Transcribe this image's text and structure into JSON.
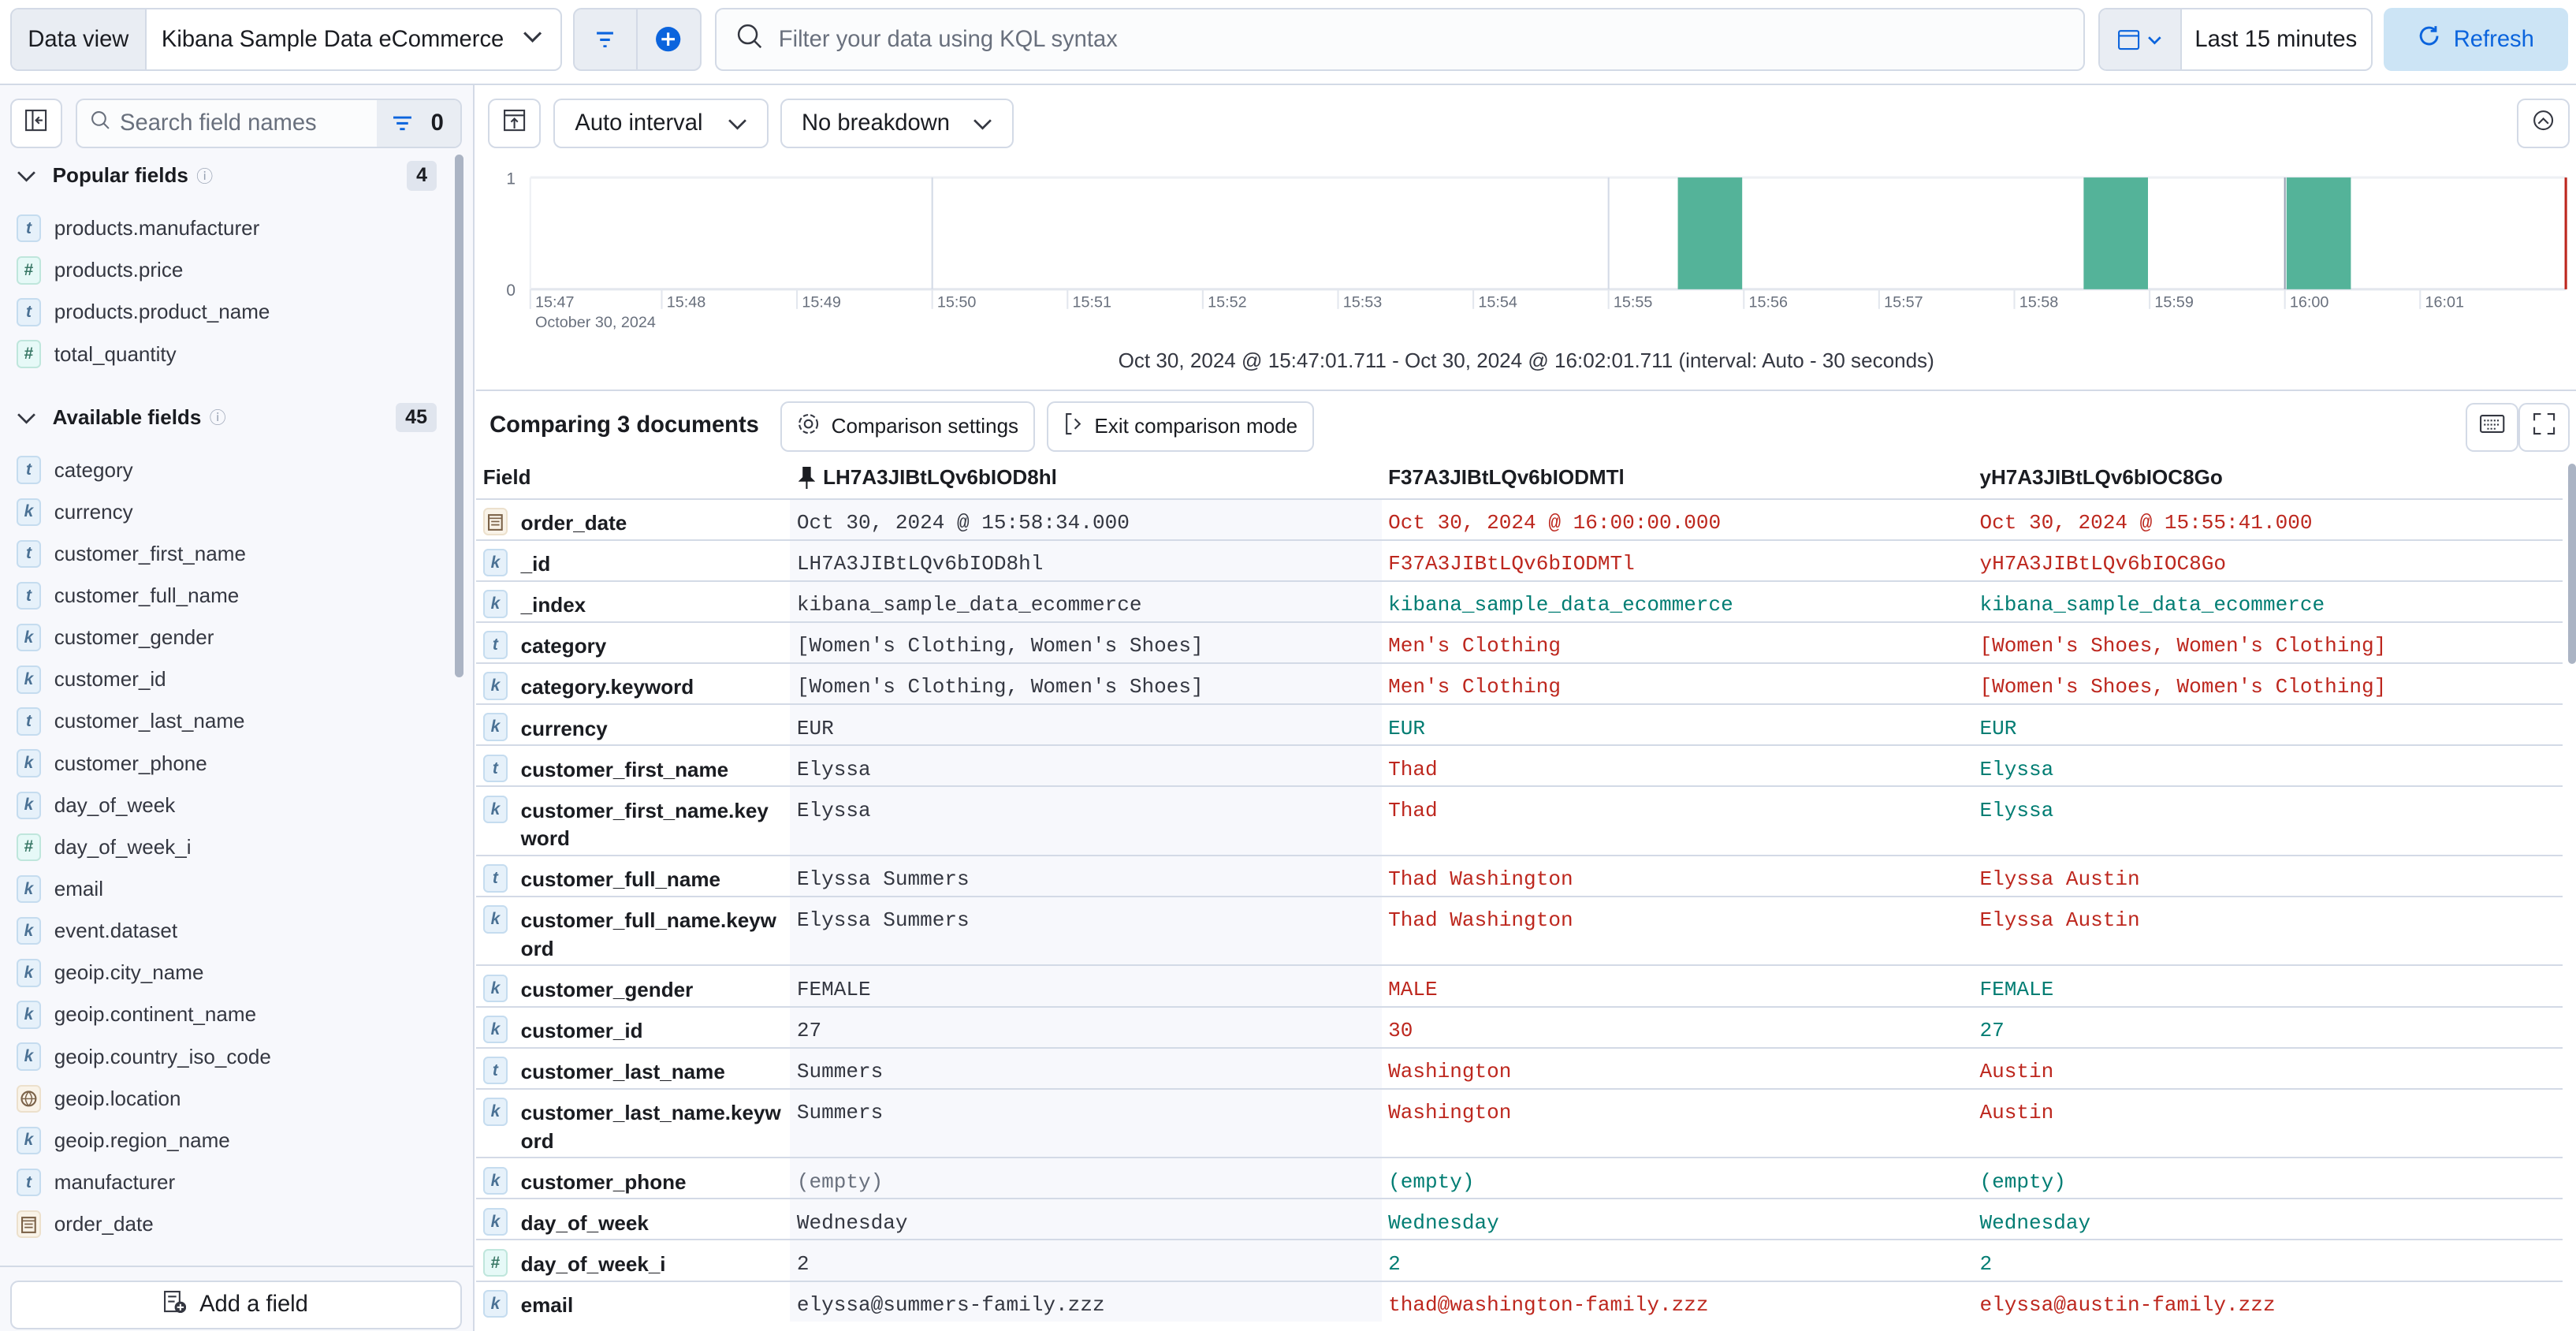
{
  "topbar": {
    "data_view_label": "Data view",
    "data_view_value": "Kibana Sample Data eCommerce",
    "query_placeholder": "Filter your data using KQL syntax",
    "time_range": "Last 15 minutes",
    "refresh_label": "Refresh"
  },
  "sidebar": {
    "search_placeholder": "Search field names",
    "filter_count": "0",
    "popular": {
      "title": "Popular fields",
      "count": "4",
      "items": [
        {
          "type": "t",
          "name": "products.manufacturer"
        },
        {
          "type": "n",
          "name": "products.price"
        },
        {
          "type": "t",
          "name": "products.product_name"
        },
        {
          "type": "n",
          "name": "total_quantity"
        }
      ]
    },
    "available": {
      "title": "Available fields",
      "count": "45",
      "items": [
        {
          "type": "t",
          "name": "category"
        },
        {
          "type": "k",
          "name": "currency"
        },
        {
          "type": "t",
          "name": "customer_first_name"
        },
        {
          "type": "t",
          "name": "customer_full_name"
        },
        {
          "type": "k",
          "name": "customer_gender"
        },
        {
          "type": "k",
          "name": "customer_id"
        },
        {
          "type": "t",
          "name": "customer_last_name"
        },
        {
          "type": "k",
          "name": "customer_phone"
        },
        {
          "type": "k",
          "name": "day_of_week"
        },
        {
          "type": "n",
          "name": "day_of_week_i"
        },
        {
          "type": "k",
          "name": "email"
        },
        {
          "type": "k",
          "name": "event.dataset"
        },
        {
          "type": "k",
          "name": "geoip.city_name"
        },
        {
          "type": "k",
          "name": "geoip.continent_name"
        },
        {
          "type": "k",
          "name": "geoip.country_iso_code"
        },
        {
          "type": "g",
          "name": "geoip.location"
        },
        {
          "type": "k",
          "name": "geoip.region_name"
        },
        {
          "type": "t",
          "name": "manufacturer"
        },
        {
          "type": "d",
          "name": "order_date"
        }
      ]
    },
    "add_field_label": "Add a field"
  },
  "chart_toolbar": {
    "interval": "Auto interval",
    "breakdown": "No breakdown"
  },
  "chart_data": {
    "type": "bar",
    "x_start": "2024-10-30T15:47:01.711",
    "x_end": "2024-10-30T16:02:01.711",
    "interval_seconds": 30,
    "x_ticks": [
      "15:47",
      "15:48",
      "15:49",
      "15:50",
      "15:51",
      "15:52",
      "15:53",
      "15:54",
      "15:55",
      "15:56",
      "15:57",
      "15:58",
      "15:59",
      "16:00",
      "16:01"
    ],
    "x_sublabel": "October 30, 2024",
    "y_ticks": [
      "0",
      "1"
    ],
    "ylim": [
      0,
      1
    ],
    "bars": [
      {
        "x": "15:55:30",
        "value": 1
      },
      {
        "x": "15:58:30",
        "value": 1
      },
      {
        "x": "16:00:00",
        "value": 1
      }
    ],
    "bar_color": "#54b399",
    "now_marker_color": "#bd271e",
    "caption": "Oct 30, 2024 @ 15:47:01.711 - Oct 30, 2024 @ 16:02:01.711 (interval: Auto - 30 seconds)"
  },
  "comparison": {
    "title": "Comparing 3 documents",
    "settings_label": "Comparison settings",
    "exit_label": "Exit comparison mode",
    "headers": [
      "Field",
      "LH7A3JIBtLQv6bIOD8hl",
      "F37A3JIBtLQv6bIODMTl",
      "yH7A3JIBtLQv6bIOC8Go"
    ],
    "colors": {
      "same": "#017d73",
      "diff": "#bd271e"
    },
    "rows": [
      {
        "type": "d",
        "field": "order_date",
        "v": [
          "Oct 30, 2024 @ 15:58:34.000",
          "Oct 30, 2024 @ 16:00:00.000",
          "Oct 30, 2024 @ 15:55:41.000"
        ],
        "s": [
          "diff",
          "diff"
        ]
      },
      {
        "type": "k",
        "field": "_id",
        "v": [
          "LH7A3JIBtLQv6bIOD8hl",
          "F37A3JIBtLQv6bIODMTl",
          "yH7A3JIBtLQv6bIOC8Go"
        ],
        "s": [
          "diff",
          "diff"
        ]
      },
      {
        "type": "k",
        "field": "_index",
        "v": [
          "kibana_sample_data_ecommerce",
          "kibana_sample_data_ecommerce",
          "kibana_sample_data_ecommerce"
        ],
        "s": [
          "same",
          "same"
        ]
      },
      {
        "type": "t",
        "field": "category",
        "v": [
          "[Women's Clothing, Women's Shoes]",
          "Men's Clothing",
          "[Women's Shoes, Women's Clothing]"
        ],
        "s": [
          "diff",
          "diff"
        ]
      },
      {
        "type": "k",
        "field": "category.keyword",
        "v": [
          "[Women's Clothing, Women's Shoes]",
          "Men's Clothing",
          "[Women's Shoes, Women's Clothing]"
        ],
        "s": [
          "diff",
          "diff"
        ]
      },
      {
        "type": "k",
        "field": "currency",
        "v": [
          "EUR",
          "EUR",
          "EUR"
        ],
        "s": [
          "same",
          "same"
        ]
      },
      {
        "type": "t",
        "field": "customer_first_name",
        "v": [
          "Elyssa",
          "Thad",
          "Elyssa"
        ],
        "s": [
          "diff",
          "same"
        ]
      },
      {
        "type": "k",
        "field": "customer_first_name.keyword",
        "v": [
          "Elyssa",
          "Thad",
          "Elyssa"
        ],
        "s": [
          "diff",
          "same"
        ],
        "tall": true
      },
      {
        "type": "t",
        "field": "customer_full_name",
        "v": [
          "Elyssa Summers",
          "Thad Washington",
          "Elyssa Austin"
        ],
        "s": [
          "diff",
          "diff"
        ]
      },
      {
        "type": "k",
        "field": "customer_full_name.keyword",
        "v": [
          "Elyssa Summers",
          "Thad Washington",
          "Elyssa Austin"
        ],
        "s": [
          "diff",
          "diff"
        ],
        "tall": true
      },
      {
        "type": "k",
        "field": "customer_gender",
        "v": [
          "FEMALE",
          "MALE",
          "FEMALE"
        ],
        "s": [
          "diff",
          "same"
        ]
      },
      {
        "type": "k",
        "field": "customer_id",
        "v": [
          "27",
          "30",
          "27"
        ],
        "s": [
          "diff",
          "same"
        ]
      },
      {
        "type": "t",
        "field": "customer_last_name",
        "v": [
          "Summers",
          "Washington",
          "Austin"
        ],
        "s": [
          "diff",
          "diff"
        ]
      },
      {
        "type": "k",
        "field": "customer_last_name.keyword",
        "v": [
          "Summers",
          "Washington",
          "Austin"
        ],
        "s": [
          "diff",
          "diff"
        ],
        "tall": true
      },
      {
        "type": "k",
        "field": "customer_phone",
        "v": [
          "(empty)",
          "(empty)",
          "(empty)"
        ],
        "s": [
          "same",
          "same"
        ],
        "empty": true
      },
      {
        "type": "k",
        "field": "day_of_week",
        "v": [
          "Wednesday",
          "Wednesday",
          "Wednesday"
        ],
        "s": [
          "same",
          "same"
        ]
      },
      {
        "type": "n",
        "field": "day_of_week_i",
        "v": [
          "2",
          "2",
          "2"
        ],
        "s": [
          "same",
          "same"
        ]
      },
      {
        "type": "k",
        "field": "email",
        "v": [
          "elyssa@summers-family.zzz",
          "thad@washington-family.zzz",
          "elyssa@austin-family.zzz"
        ],
        "s": [
          "diff",
          "diff"
        ]
      }
    ]
  }
}
